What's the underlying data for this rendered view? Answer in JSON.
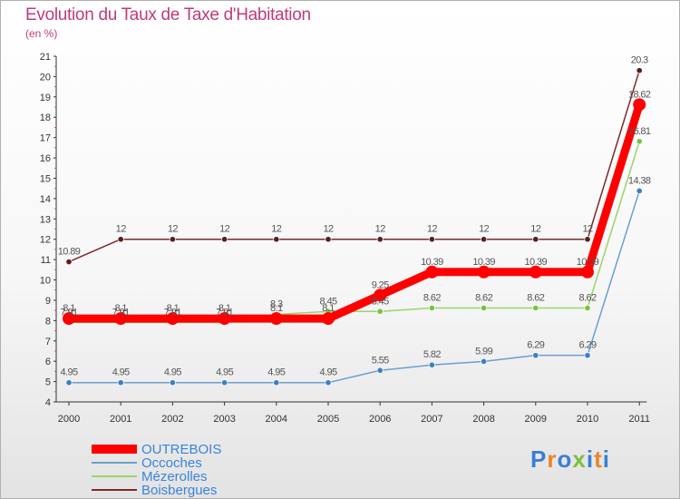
{
  "title": "Evolution du Taux de Taxe d'Habitation",
  "unit_label": "(en %)",
  "logo": {
    "text": "Proxiti",
    "letters": [
      "P",
      "r",
      "o",
      "x",
      "i",
      "t",
      "i"
    ],
    "colors": [
      "#3a7fd5",
      "#e8862a",
      "#3a7fd5",
      "#7ac142",
      "#3a7fd5",
      "#e8862a",
      "#3a7fd5"
    ]
  },
  "chart_data": {
    "type": "line",
    "title": "Evolution du Taux de Taxe d'Habitation",
    "ylabel": "(en %)",
    "xlabel": "",
    "categories": [
      "2000",
      "2001",
      "2002",
      "2003",
      "2004",
      "2005",
      "2006",
      "2007",
      "2008",
      "2009",
      "2010",
      "2011"
    ],
    "ylim": [
      4,
      21
    ],
    "yticks": [
      4,
      5,
      6,
      7,
      8,
      9,
      10,
      11,
      12,
      13,
      14,
      15,
      16,
      17,
      18,
      19,
      20,
      21
    ],
    "grid": false,
    "legend_position": "bottom-left",
    "series": [
      {
        "name": "Boisbergues",
        "color": "#7a2a2a",
        "marker": "#5a1e1e",
        "values": [
          10.89,
          12,
          12,
          12,
          12,
          12,
          12,
          12,
          12,
          12,
          12,
          20.3
        ],
        "labels": [
          "10.89",
          "12",
          "12",
          "12",
          "12",
          "12",
          "12",
          "12",
          "12",
          "12",
          "12",
          "20.3"
        ]
      },
      {
        "name": "Mézerolles",
        "color": "#9ad46a",
        "marker": "#7ac142",
        "values": [
          7.91,
          7.91,
          7.91,
          7.91,
          8.3,
          8.45,
          8.45,
          8.62,
          8.62,
          8.62,
          8.62,
          16.81
        ],
        "labels": [
          "7.91",
          "7.91",
          "7.91",
          "7.91",
          "8.3",
          "8.45",
          "8.45",
          "8.62",
          "8.62",
          "8.62",
          "8.62",
          "16.81"
        ]
      },
      {
        "name": "Occoches",
        "color": "#6a9fd0",
        "marker": "#3d7fc4",
        "values": [
          4.95,
          4.95,
          4.95,
          4.95,
          4.95,
          4.95,
          5.55,
          5.82,
          5.99,
          6.29,
          6.29,
          14.38
        ],
        "labels": [
          "4.95",
          "4.95",
          "4.95",
          "4.95",
          "4.95",
          "4.95",
          "5.55",
          "5.82",
          "5.99",
          "6.29",
          "6.29",
          "14.38"
        ]
      },
      {
        "name": "OUTREBOIS",
        "color": "#ff0000",
        "marker": "#ff0000",
        "thick": true,
        "values": [
          8.1,
          8.1,
          8.1,
          8.1,
          8.1,
          8.1,
          9.25,
          10.39,
          10.39,
          10.39,
          10.39,
          18.62
        ],
        "labels": [
          "8.1",
          "8.1",
          "8.1",
          "8.1",
          "8.1",
          "8.1",
          "9.25",
          "10.39",
          "10.39",
          "10.39",
          "10.39",
          "18.62"
        ]
      }
    ],
    "legend_order": [
      "OUTREBOIS",
      "Occoches",
      "Mézerolles",
      "Boisbergues"
    ]
  }
}
